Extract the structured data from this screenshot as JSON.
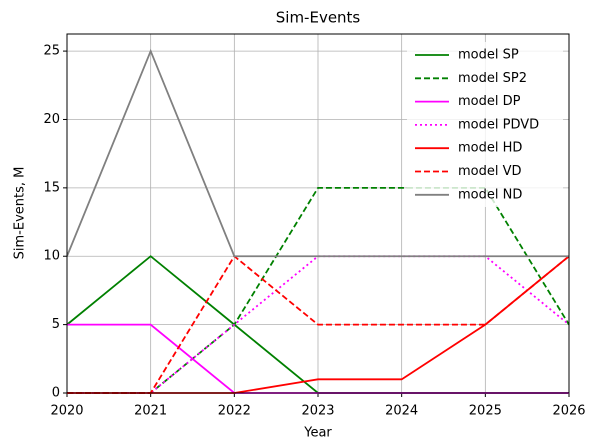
{
  "chart_data": {
    "type": "line",
    "title": "Sim-Events",
    "xlabel": "Year",
    "ylabel": "Sim-Events, M",
    "x": [
      2020,
      2021,
      2022,
      2023,
      2024,
      2025,
      2026
    ],
    "xlim": [
      2020,
      2026
    ],
    "xticks": [
      2020,
      2021,
      2022,
      2023,
      2024,
      2025,
      2026
    ],
    "ylim": [
      0,
      26.25
    ],
    "yticks": [
      0,
      5,
      10,
      15,
      20,
      25
    ],
    "grid": true,
    "legend": "upper right",
    "series": [
      {
        "name": "model SP",
        "color": "#008000",
        "style": "solid",
        "values": [
          5,
          10,
          5,
          0,
          0,
          0,
          0
        ]
      },
      {
        "name": "model SP2",
        "color": "#008000",
        "style": "dashed",
        "values": [
          0,
          0,
          5,
          15,
          15,
          15,
          5
        ]
      },
      {
        "name": "model DP",
        "color": "#ff00ff",
        "style": "solid",
        "values": [
          5,
          5,
          0,
          0,
          0,
          0,
          0
        ]
      },
      {
        "name": "model PDVD",
        "color": "#ff00ff",
        "style": "dotted",
        "values": [
          0,
          0,
          5,
          10,
          10,
          10,
          5
        ]
      },
      {
        "name": "model HD",
        "color": "#ff0000",
        "style": "solid",
        "values": [
          0,
          0,
          0,
          1,
          1,
          5,
          10
        ]
      },
      {
        "name": "model VD",
        "color": "#ff0000",
        "style": "dashed",
        "values": [
          0,
          0,
          10,
          5,
          5,
          5,
          10
        ]
      },
      {
        "name": "model ND",
        "color": "#808080",
        "style": "solid",
        "values": [
          10,
          25,
          10,
          10,
          10,
          10,
          10
        ]
      }
    ]
  }
}
